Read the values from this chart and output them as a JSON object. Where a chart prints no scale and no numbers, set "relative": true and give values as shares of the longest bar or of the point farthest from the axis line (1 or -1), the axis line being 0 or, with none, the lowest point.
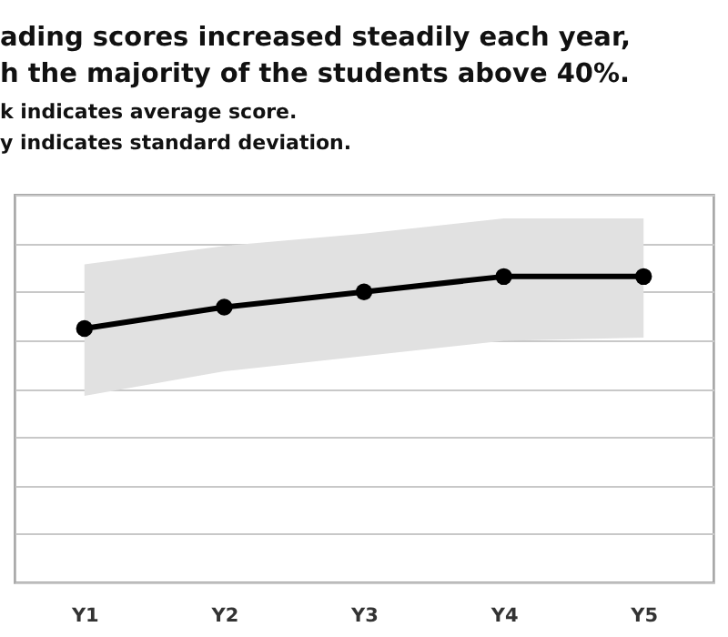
{
  "chart_data": {
    "type": "line",
    "title": "ading scores increased steadily each year,\nh the majority of the students above 40%.",
    "subtitle": "k indicates average score.\ny indicates standard deviation.",
    "categories": [
      "Y1",
      "Y2",
      "Y3",
      "Y4",
      "Y5"
    ],
    "relative": true,
    "grid": true,
    "marker": "circle",
    "legend": false,
    "series": [
      {
        "color": "#000000",
        "values": [
          0.83,
          0.9,
          0.95,
          1.0,
          1.0
        ],
        "lower": [
          0.61,
          0.69,
          0.74,
          0.79,
          0.8
        ],
        "upper": [
          1.04,
          1.1,
          1.14,
          1.19,
          1.19
        ]
      }
    ]
  }
}
